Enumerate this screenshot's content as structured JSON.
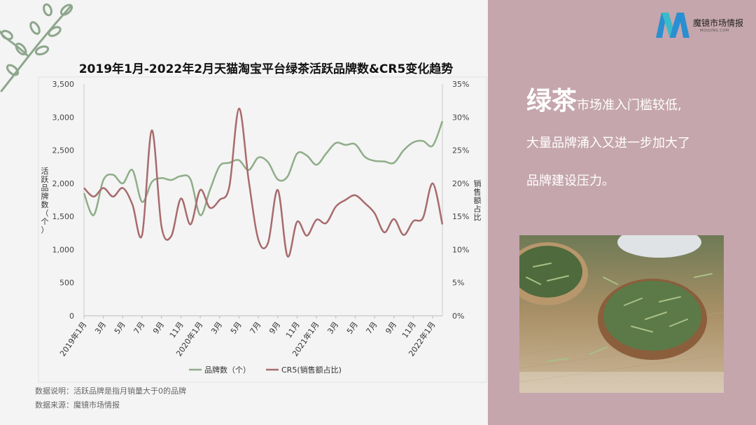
{
  "chart_title": "2019年1月-2022年2月天猫淘宝平台绿茶活跃品牌数&CR5变化趋势",
  "notes": [
    "数据说明：活跃品牌是指月销量大于0的品牌",
    "数据来源：魔镜市场情报"
  ],
  "logo": {
    "name": "魔镜市场情报",
    "sub": "MOOJING.COM"
  },
  "headline": {
    "emphasis": "绿茶",
    "line1_rest": "市场准入门槛较低,",
    "line2": "大量品牌涌入又进一步加大了",
    "line3": "品牌建设压力。"
  },
  "colors": {
    "brand_series": "#8fad88",
    "cr5_series": "#a86b6d",
    "right_panel": "#c5a6ad"
  },
  "chart_data": {
    "type": "line",
    "title": "2019年1月-2022年2月天猫淘宝平台绿茶活跃品牌数&CR5变化趋势",
    "x_tick_labels": [
      "2019年1月",
      "3月",
      "5月",
      "7月",
      "9月",
      "11月",
      "2020年1月",
      "3月",
      "5月",
      "7月",
      "9月",
      "11月",
      "2021年1月",
      "3月",
      "5月",
      "7月",
      "9月",
      "11月",
      "2022年1月"
    ],
    "months": [
      "2019-01",
      "2019-02",
      "2019-03",
      "2019-04",
      "2019-05",
      "2019-06",
      "2019-07",
      "2019-08",
      "2019-09",
      "2019-10",
      "2019-11",
      "2019-12",
      "2020-01",
      "2020-02",
      "2020-03",
      "2020-04",
      "2020-05",
      "2020-06",
      "2020-07",
      "2020-08",
      "2020-09",
      "2020-10",
      "2020-11",
      "2020-12",
      "2021-01",
      "2021-02",
      "2021-03",
      "2021-04",
      "2021-05",
      "2021-06",
      "2021-07",
      "2021-08",
      "2021-09",
      "2021-10",
      "2021-11",
      "2021-12",
      "2022-01",
      "2022-02"
    ],
    "ylabel": "活跃品牌数（个）",
    "y2label": "销售额占比",
    "ylim": [
      0,
      3500
    ],
    "y_ticks": [
      "0",
      "500",
      "1,000",
      "1,500",
      "2,000",
      "2,500",
      "3,000",
      "3,500"
    ],
    "y2lim": [
      0,
      35
    ],
    "y2_ticks": [
      "0%",
      "5%",
      "10%",
      "15%",
      "20%",
      "25%",
      "30%",
      "35%"
    ],
    "series": [
      {
        "name": "品牌数（个）",
        "axis": "left",
        "values": [
          1850,
          1520,
          2050,
          2130,
          2000,
          2200,
          1720,
          2020,
          2080,
          2050,
          2110,
          2060,
          1520,
          1900,
          2260,
          2310,
          2350,
          2200,
          2390,
          2320,
          2060,
          2100,
          2450,
          2420,
          2280,
          2450,
          2610,
          2580,
          2590,
          2400,
          2340,
          2330,
          2310,
          2500,
          2620,
          2640,
          2570,
          2940
        ]
      },
      {
        "name": "CR5(销售额占比)",
        "axis": "right",
        "values": [
          19.3,
          18.0,
          19.3,
          18.0,
          19.3,
          16.8,
          12.2,
          28.0,
          13.5,
          12.0,
          17.7,
          13.8,
          19.0,
          16.3,
          17.5,
          19.5,
          31.3,
          20.5,
          11.5,
          11.0,
          19.0,
          9.0,
          14.2,
          12.1,
          14.5,
          14.0,
          16.5,
          17.5,
          18.2,
          17.0,
          15.5,
          12.6,
          14.6,
          12.2,
          14.3,
          14.8,
          20.0,
          13.8
        ]
      }
    ],
    "legend_position": "bottom",
    "grid": false
  }
}
